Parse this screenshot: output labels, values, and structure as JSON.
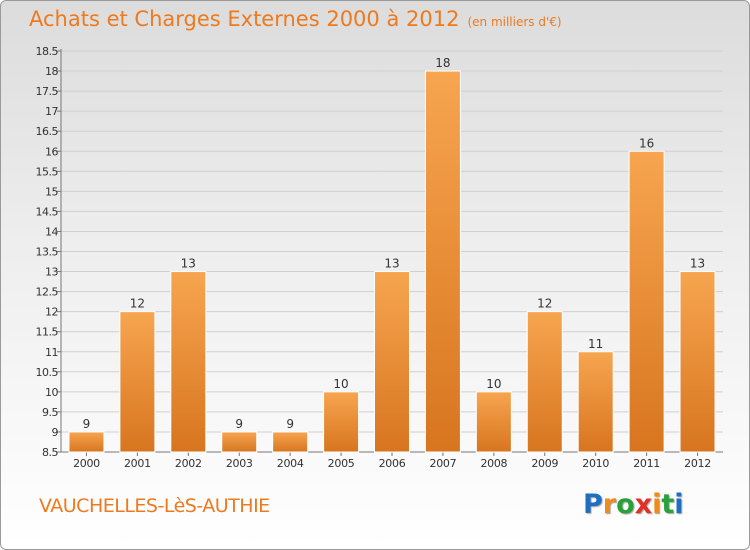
{
  "header": {
    "title": "Achats et Charges Externes 2000 à 2012",
    "subtitle": "(en milliers d'€)"
  },
  "footer": {
    "commune": "VAUCHELLES-LèS-AUTHIE",
    "logo": [
      "P",
      "r",
      "o",
      "x",
      "i",
      "t",
      "i"
    ]
  },
  "colors": {
    "accent": "#ee7a1f",
    "bar_top": "#f7a550",
    "bar_bottom": "#d8751f",
    "logo": [
      "#1e6fc0",
      "#f08a1c",
      "#2aa03a",
      "#e0322a",
      "#f08a1c",
      "#2aa03a",
      "#1e6fc0"
    ]
  },
  "chart_data": {
    "type": "bar",
    "title": "Achats et Charges Externes 2000 à 2012",
    "subtitle": "(en milliers d'€)",
    "categories": [
      "2000",
      "2001",
      "2002",
      "2003",
      "2004",
      "2005",
      "2006",
      "2007",
      "2008",
      "2009",
      "2010",
      "2011",
      "2012"
    ],
    "values": [
      9,
      12,
      13,
      9,
      9,
      10,
      13,
      18,
      10,
      12,
      11,
      16,
      13
    ],
    "data_labels": [
      "9",
      "12",
      "13",
      "9",
      "9",
      "10",
      "13",
      "18",
      "10",
      "12",
      "11",
      "16",
      "13"
    ],
    "ylim": [
      8.5,
      18.5
    ],
    "yticks": [
      8.5,
      9,
      9.5,
      10,
      10.5,
      11,
      11.5,
      12,
      12.5,
      13,
      13.5,
      14,
      14.5,
      15,
      15.5,
      16,
      16.5,
      17,
      17.5,
      18,
      18.5
    ],
    "ytick_labels": [
      "8.5",
      "9",
      "9.5",
      "10",
      "10.5",
      "11",
      "11.5",
      "12",
      "12.5",
      "13",
      "13.5",
      "14",
      "14.5",
      "15",
      "15.5",
      "16",
      "16.5",
      "17",
      "17.5",
      "18",
      "18.5"
    ],
    "grid": true,
    "xlabel": "",
    "ylabel": ""
  }
}
